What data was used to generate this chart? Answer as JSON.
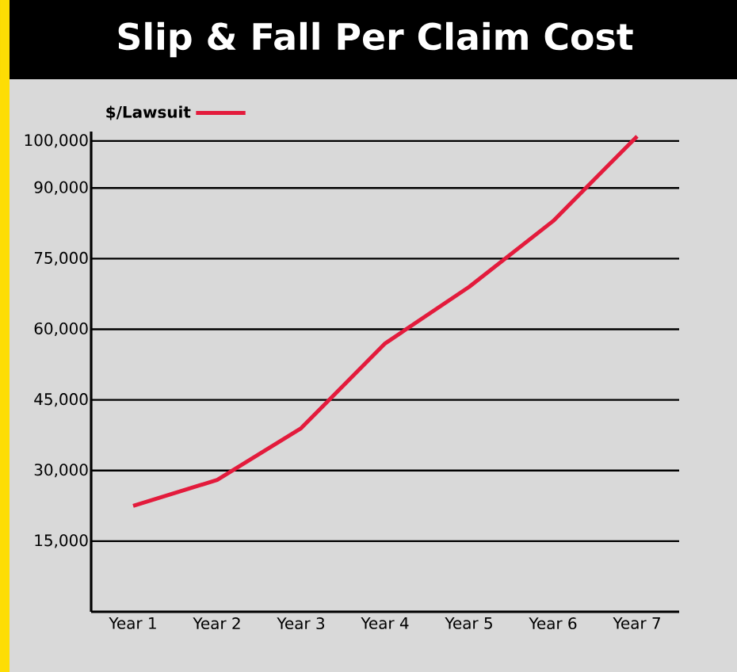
{
  "chart_data": {
    "type": "line",
    "title": "Slip & Fall Per Claim Cost",
    "categories": [
      "Year 1",
      "Year 2",
      "Year 3",
      "Year 4",
      "Year 5",
      "Year 6",
      "Year 7"
    ],
    "series": [
      {
        "name": "$/Lawsuit",
        "color": "#e31b3c",
        "values": [
          22500,
          28000,
          39000,
          57000,
          69000,
          83000,
          101000
        ]
      }
    ],
    "ylim": [
      0,
      102000
    ],
    "yticks": [
      {
        "value": 15000,
        "label": "15,000"
      },
      {
        "value": 30000,
        "label": "30,000"
      },
      {
        "value": 45000,
        "label": "45,000"
      },
      {
        "value": 60000,
        "label": "60,000"
      },
      {
        "value": 75000,
        "label": "75,000"
      },
      {
        "value": 90000,
        "label": "90,000"
      },
      {
        "value": 100000,
        "label": "100,000"
      }
    ],
    "grid": "y",
    "legend": "top left"
  }
}
